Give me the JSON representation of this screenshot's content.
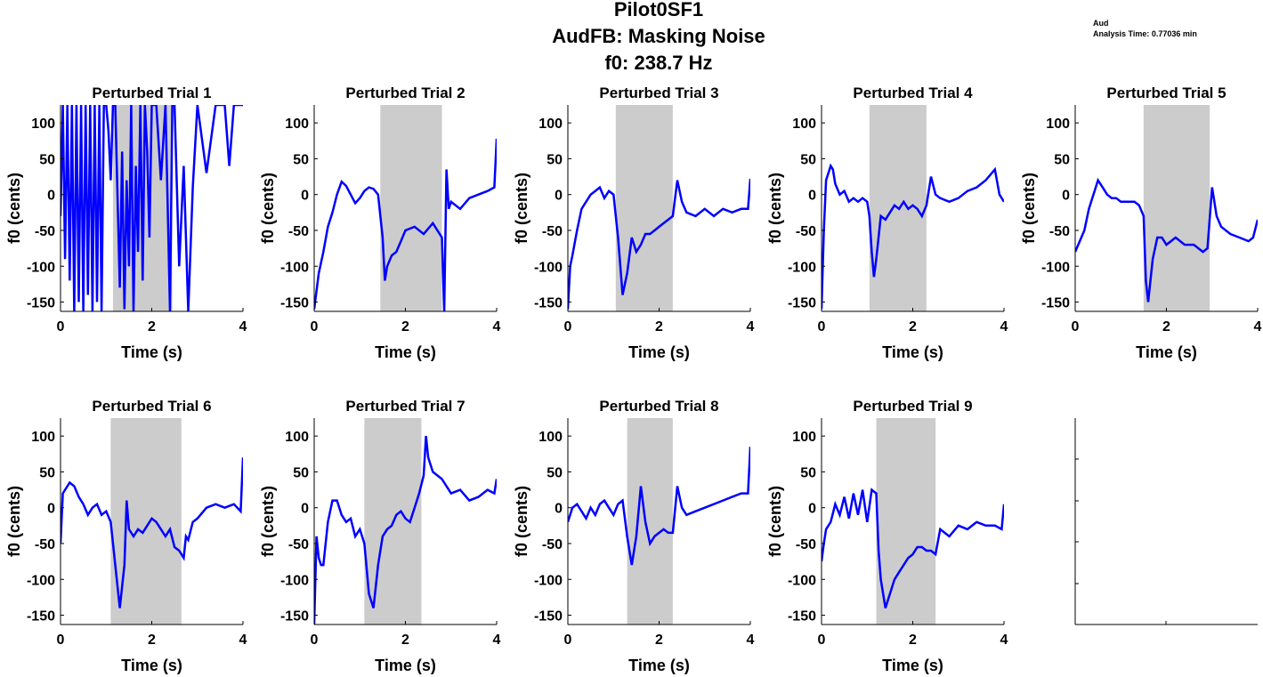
{
  "figure": {
    "title_lines": [
      "Pilot0SF1",
      "AudFB: Masking Noise",
      "f0: 238.7 Hz"
    ],
    "note_lines": [
      "Aud",
      "Analysis Time: 0.77036 min"
    ]
  },
  "colors": {
    "trace": "#0000ff",
    "shade": "#cccccc",
    "axis": "#000000"
  },
  "chart_data": [
    {
      "type": "line",
      "title": "Perturbed Trial 1",
      "xlabel": "Time (s)",
      "ylabel": "f0 (cents)",
      "xlim": [
        0,
        4
      ],
      "ylim": [
        -163,
        125
      ],
      "xticks": [
        0,
        2,
        4
      ],
      "yticks": [
        -150,
        -100,
        -50,
        0,
        50,
        100
      ],
      "shade": [
        1.15,
        2.45
      ],
      "x": [
        0.0,
        0.05,
        0.1,
        0.15,
        0.2,
        0.25,
        0.3,
        0.35,
        0.4,
        0.45,
        0.5,
        0.55,
        0.6,
        0.65,
        0.7,
        0.75,
        0.8,
        0.85,
        0.9,
        0.95,
        1.0,
        1.05,
        1.1,
        1.15,
        1.2,
        1.3,
        1.35,
        1.4,
        1.45,
        1.5,
        1.55,
        1.6,
        1.65,
        1.7,
        1.75,
        1.8,
        1.85,
        1.9,
        1.95,
        2.0,
        2.1,
        2.2,
        2.3,
        2.4,
        2.45,
        2.5,
        2.6,
        2.7,
        2.8,
        2.9,
        3.0,
        3.2,
        3.4,
        3.6,
        3.7,
        3.8,
        4.0
      ],
      "y": [
        -30,
        125,
        -90,
        125,
        -120,
        125,
        -163,
        125,
        -150,
        125,
        -163,
        125,
        -140,
        125,
        -163,
        125,
        -150,
        125,
        -163,
        125,
        125,
        90,
        20,
        125,
        125,
        -130,
        60,
        -160,
        20,
        -100,
        125,
        -163,
        40,
        -80,
        125,
        -120,
        125,
        60,
        -60,
        125,
        125,
        20,
        125,
        -163,
        125,
        125,
        -100,
        40,
        -163,
        10,
        125,
        30,
        125,
        125,
        40,
        125,
        125
      ]
    },
    {
      "type": "line",
      "title": "Perturbed Trial 2",
      "xlabel": "Time (s)",
      "ylabel": "f0 (cents)",
      "xlim": [
        0,
        4
      ],
      "ylim": [
        -163,
        125
      ],
      "xticks": [
        0,
        2,
        4
      ],
      "yticks": [
        -150,
        -100,
        -50,
        0,
        50,
        100
      ],
      "shade": [
        1.45,
        2.8
      ],
      "x": [
        0.0,
        0.1,
        0.2,
        0.3,
        0.4,
        0.5,
        0.6,
        0.7,
        0.8,
        0.9,
        1.0,
        1.1,
        1.2,
        1.3,
        1.4,
        1.5,
        1.55,
        1.6,
        1.7,
        1.8,
        1.9,
        2.0,
        2.2,
        2.4,
        2.6,
        2.8,
        2.85,
        2.9,
        2.95,
        3.0,
        3.2,
        3.4,
        3.6,
        3.8,
        3.95,
        4.0
      ],
      "y": [
        -160,
        -110,
        -80,
        -45,
        -25,
        0,
        18,
        12,
        0,
        -12,
        -5,
        5,
        10,
        8,
        0,
        -60,
        -120,
        -100,
        -85,
        -80,
        -65,
        -50,
        -45,
        -55,
        -40,
        -60,
        -163,
        35,
        -20,
        -10,
        -20,
        -5,
        0,
        5,
        10,
        78
      ]
    },
    {
      "type": "line",
      "title": "Perturbed Trial 3",
      "xlabel": "Time (s)",
      "ylabel": "f0 (cents)",
      "xlim": [
        0,
        4
      ],
      "ylim": [
        -163,
        125
      ],
      "xticks": [
        0,
        2,
        4
      ],
      "yticks": [
        -150,
        -100,
        -50,
        0,
        50,
        100
      ],
      "shade": [
        1.05,
        2.3
      ],
      "x": [
        0.0,
        0.05,
        0.1,
        0.2,
        0.3,
        0.4,
        0.5,
        0.6,
        0.7,
        0.8,
        0.9,
        1.0,
        1.1,
        1.2,
        1.3,
        1.4,
        1.5,
        1.6,
        1.7,
        1.8,
        1.9,
        2.0,
        2.1,
        2.2,
        2.3,
        2.4,
        2.5,
        2.6,
        2.8,
        3.0,
        3.2,
        3.4,
        3.6,
        3.8,
        3.95,
        4.0
      ],
      "y": [
        -160,
        -100,
        -85,
        -50,
        -20,
        -10,
        0,
        5,
        10,
        -5,
        5,
        0,
        -60,
        -140,
        -110,
        -60,
        -80,
        -70,
        -55,
        -55,
        -50,
        -45,
        -40,
        -35,
        -30,
        20,
        -10,
        -25,
        -30,
        -20,
        -30,
        -20,
        -25,
        -20,
        -20,
        22
      ]
    },
    {
      "type": "line",
      "title": "Perturbed Trial 4",
      "xlabel": "Time (s)",
      "ylabel": "f0 (cents)",
      "xlim": [
        0,
        4
      ],
      "ylim": [
        -163,
        125
      ],
      "xticks": [
        0,
        2,
        4
      ],
      "yticks": [
        -150,
        -100,
        -50,
        0,
        50,
        100
      ],
      "shade": [
        1.05,
        2.3
      ],
      "x": [
        0.0,
        0.05,
        0.1,
        0.2,
        0.25,
        0.3,
        0.4,
        0.5,
        0.6,
        0.7,
        0.8,
        0.9,
        1.0,
        1.05,
        1.1,
        1.15,
        1.2,
        1.3,
        1.4,
        1.5,
        1.6,
        1.7,
        1.8,
        1.9,
        2.0,
        2.1,
        2.2,
        2.3,
        2.4,
        2.5,
        2.6,
        2.8,
        3.0,
        3.2,
        3.4,
        3.6,
        3.8,
        3.9,
        4.0
      ],
      "y": [
        -160,
        -50,
        20,
        40,
        35,
        15,
        0,
        5,
        -10,
        -5,
        -10,
        -5,
        -10,
        -30,
        -80,
        -115,
        -90,
        -30,
        -35,
        -25,
        -15,
        -20,
        -10,
        -20,
        -15,
        -20,
        -30,
        -15,
        25,
        0,
        -5,
        -10,
        -5,
        5,
        10,
        20,
        35,
        0,
        -10
      ]
    },
    {
      "type": "line",
      "title": "Perturbed Trial 5",
      "xlabel": "Time (s)",
      "ylabel": "f0 (cents)",
      "xlim": [
        0,
        4
      ],
      "ylim": [
        -163,
        125
      ],
      "xticks": [
        0,
        2,
        4
      ],
      "yticks": [
        -150,
        -100,
        -50,
        0,
        50,
        100
      ],
      "shade": [
        1.5,
        2.95
      ],
      "x": [
        0.0,
        0.1,
        0.2,
        0.3,
        0.4,
        0.5,
        0.6,
        0.7,
        0.8,
        0.9,
        1.0,
        1.1,
        1.2,
        1.3,
        1.4,
        1.5,
        1.55,
        1.6,
        1.7,
        1.8,
        1.9,
        2.0,
        2.2,
        2.4,
        2.6,
        2.8,
        2.9,
        3.0,
        3.1,
        3.2,
        3.4,
        3.6,
        3.8,
        3.9,
        4.0
      ],
      "y": [
        -80,
        -65,
        -50,
        -20,
        0,
        20,
        10,
        0,
        -5,
        -5,
        -10,
        -10,
        -10,
        -10,
        -15,
        -30,
        -120,
        -150,
        -90,
        -60,
        -60,
        -70,
        -60,
        -70,
        -70,
        -80,
        -75,
        10,
        -30,
        -45,
        -55,
        -60,
        -65,
        -60,
        -35
      ]
    },
    {
      "type": "line",
      "title": "Perturbed Trial 6",
      "xlabel": "Time (s)",
      "ylabel": "f0 (cents)",
      "xlim": [
        0,
        4
      ],
      "ylim": [
        -163,
        125
      ],
      "xticks": [
        0,
        2,
        4
      ],
      "yticks": [
        -150,
        -100,
        -50,
        0,
        50,
        100
      ],
      "shade": [
        1.1,
        2.65
      ],
      "x": [
        0.0,
        0.05,
        0.1,
        0.2,
        0.3,
        0.4,
        0.5,
        0.6,
        0.7,
        0.8,
        0.9,
        1.0,
        1.1,
        1.2,
        1.3,
        1.4,
        1.45,
        1.5,
        1.6,
        1.7,
        1.8,
        1.9,
        2.0,
        2.1,
        2.2,
        2.3,
        2.4,
        2.5,
        2.6,
        2.7,
        2.75,
        2.8,
        2.9,
        3.0,
        3.2,
        3.4,
        3.6,
        3.8,
        3.95,
        4.0
      ],
      "y": [
        -50,
        20,
        25,
        35,
        30,
        15,
        5,
        -10,
        0,
        5,
        -10,
        -5,
        -20,
        -80,
        -140,
        -80,
        10,
        -30,
        -40,
        -30,
        -35,
        -25,
        -15,
        -20,
        -30,
        -40,
        -30,
        -55,
        -60,
        -70,
        -40,
        -45,
        -20,
        -15,
        0,
        5,
        0,
        5,
        -5,
        70
      ]
    },
    {
      "type": "line",
      "title": "Perturbed Trial 7",
      "xlabel": "Time (s)",
      "ylabel": "f0 (cents)",
      "xlim": [
        0,
        4
      ],
      "ylim": [
        -163,
        125
      ],
      "xticks": [
        0,
        2,
        4
      ],
      "yticks": [
        -150,
        -100,
        -50,
        0,
        50,
        100
      ],
      "shade": [
        1.1,
        2.35
      ],
      "x": [
        0.0,
        0.05,
        0.1,
        0.15,
        0.2,
        0.3,
        0.4,
        0.5,
        0.6,
        0.7,
        0.8,
        0.9,
        1.0,
        1.1,
        1.2,
        1.3,
        1.4,
        1.5,
        1.6,
        1.7,
        1.8,
        1.9,
        2.0,
        2.1,
        2.2,
        2.3,
        2.4,
        2.45,
        2.5,
        2.6,
        2.8,
        3.0,
        3.2,
        3.4,
        3.6,
        3.8,
        3.95,
        4.0
      ],
      "y": [
        -163,
        -40,
        -70,
        -80,
        -80,
        -20,
        10,
        10,
        -10,
        -20,
        -15,
        -40,
        -30,
        -50,
        -120,
        -140,
        -80,
        -40,
        -30,
        -25,
        -10,
        -5,
        -15,
        -20,
        0,
        20,
        45,
        100,
        70,
        50,
        40,
        20,
        25,
        10,
        15,
        25,
        20,
        40
      ]
    },
    {
      "type": "line",
      "title": "Perturbed Trial 8",
      "xlabel": "Time (s)",
      "ylabel": "f0 (cents)",
      "xlim": [
        0,
        4
      ],
      "ylim": [
        -163,
        125
      ],
      "xticks": [
        0,
        2,
        4
      ],
      "yticks": [
        -150,
        -100,
        -50,
        0,
        50,
        100
      ],
      "shade": [
        1.3,
        2.3
      ],
      "x": [
        0.0,
        0.1,
        0.2,
        0.3,
        0.4,
        0.5,
        0.6,
        0.7,
        0.8,
        0.9,
        1.0,
        1.1,
        1.2,
        1.3,
        1.4,
        1.5,
        1.6,
        1.7,
        1.8,
        1.9,
        2.0,
        2.1,
        2.2,
        2.3,
        2.4,
        2.5,
        2.6,
        2.8,
        3.0,
        3.2,
        3.4,
        3.6,
        3.8,
        3.95,
        4.0
      ],
      "y": [
        -20,
        0,
        5,
        -5,
        -15,
        0,
        -10,
        5,
        10,
        0,
        -10,
        5,
        10,
        -40,
        -80,
        -40,
        30,
        -20,
        -50,
        -40,
        -35,
        -30,
        -35,
        -35,
        30,
        0,
        -10,
        -5,
        0,
        5,
        10,
        15,
        20,
        20,
        85
      ]
    },
    {
      "type": "line",
      "title": "Perturbed Trial 9",
      "xlabel": "Time (s)",
      "ylabel": "f0 (cents)",
      "xlim": [
        0,
        4
      ],
      "ylim": [
        -163,
        125
      ],
      "xticks": [
        0,
        2,
        4
      ],
      "yticks": [
        -150,
        -100,
        -50,
        0,
        50,
        100
      ],
      "shade": [
        1.2,
        2.5
      ],
      "x": [
        0.0,
        0.05,
        0.1,
        0.2,
        0.3,
        0.4,
        0.5,
        0.6,
        0.7,
        0.8,
        0.9,
        1.0,
        1.1,
        1.2,
        1.25,
        1.3,
        1.4,
        1.5,
        1.6,
        1.7,
        1.8,
        1.9,
        2.0,
        2.1,
        2.2,
        2.3,
        2.4,
        2.5,
        2.6,
        2.7,
        2.8,
        3.0,
        3.2,
        3.4,
        3.6,
        3.8,
        3.95,
        4.0
      ],
      "y": [
        -75,
        -50,
        -30,
        -20,
        5,
        -10,
        15,
        -15,
        20,
        -10,
        25,
        -20,
        25,
        20,
        -60,
        -100,
        -140,
        -120,
        -100,
        -90,
        -80,
        -70,
        -65,
        -55,
        -55,
        -60,
        -60,
        -65,
        -30,
        -35,
        -40,
        -25,
        -30,
        -20,
        -25,
        -25,
        -30,
        5
      ]
    }
  ]
}
